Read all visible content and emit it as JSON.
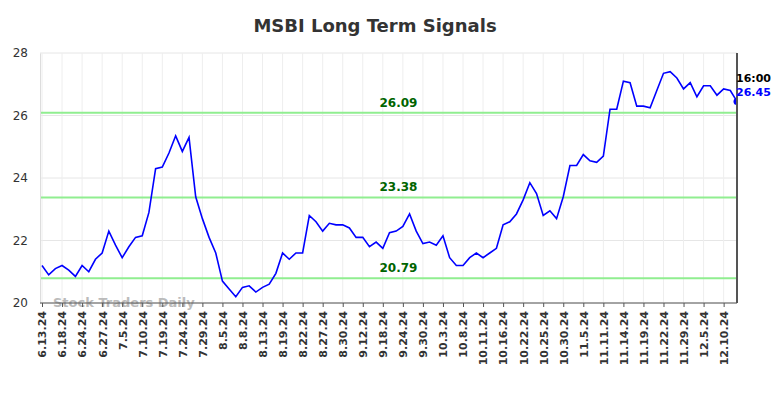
{
  "chart_data": {
    "type": "line",
    "title": "MSBI Long Term Signals",
    "categories": [
      "6.13.24",
      null,
      null,
      "6.18.24",
      null,
      null,
      "6.24.24",
      null,
      null,
      "6.27.24",
      null,
      null,
      "7.5.24",
      null,
      null,
      "7.10.24",
      null,
      null,
      "7.19.24",
      null,
      null,
      "7.24.24",
      null,
      null,
      "7.29.24",
      null,
      null,
      "8.5.24",
      null,
      null,
      "8.8.24",
      null,
      null,
      "8.13.24",
      null,
      null,
      "8.19.24",
      null,
      null,
      "8.22.24",
      null,
      null,
      "8.27.24",
      null,
      null,
      "8.30.24",
      null,
      null,
      "9.12.24",
      null,
      null,
      "9.18.24",
      null,
      null,
      "9.24.24",
      null,
      null,
      "9.30.24",
      null,
      null,
      "10.3.24",
      null,
      null,
      "10.8.24",
      null,
      null,
      "10.11.24",
      null,
      null,
      "10.16.24",
      null,
      null,
      "10.22.24",
      null,
      null,
      "10.25.24",
      null,
      null,
      "10.30.24",
      null,
      null,
      "11.5.24",
      null,
      null,
      "11.11.24",
      null,
      null,
      "11.14.24",
      null,
      null,
      "11.19.24",
      null,
      null,
      "11.22.24",
      null,
      null,
      "11.29.24",
      null,
      null,
      "12.5.24",
      null,
      null,
      "12.10.24",
      null,
      null
    ],
    "values": [
      21.2,
      20.9,
      21.1,
      21.2,
      21.05,
      20.85,
      21.2,
      21.0,
      21.4,
      21.6,
      22.3,
      21.85,
      21.45,
      21.8,
      22.1,
      22.15,
      22.9,
      24.3,
      24.35,
      24.8,
      25.35,
      24.85,
      25.3,
      23.4,
      22.7,
      22.1,
      21.6,
      20.7,
      20.45,
      20.2,
      20.5,
      20.55,
      20.35,
      20.5,
      20.6,
      20.95,
      21.6,
      21.4,
      21.6,
      21.6,
      22.8,
      22.6,
      22.3,
      22.55,
      22.5,
      22.5,
      22.4,
      22.1,
      22.1,
      21.8,
      21.95,
      21.75,
      22.25,
      22.3,
      22.45,
      22.85,
      22.3,
      21.9,
      21.95,
      21.85,
      22.15,
      21.45,
      21.2,
      21.2,
      21.45,
      21.6,
      21.45,
      21.6,
      21.75,
      22.5,
      22.6,
      22.85,
      23.3,
      23.85,
      23.5,
      22.8,
      22.95,
      22.7,
      23.4,
      24.4,
      24.4,
      24.75,
      24.55,
      24.5,
      24.7,
      26.2,
      26.2,
      27.1,
      27.05,
      26.3,
      26.3,
      26.25,
      26.8,
      27.35,
      27.4,
      27.2,
      26.85,
      27.05,
      26.6,
      26.95,
      26.95,
      26.65,
      26.85,
      26.8,
      26.45
    ],
    "color": "#0000ff",
    "ylim": [
      20,
      28
    ],
    "yticks": [
      20,
      22,
      24,
      26,
      28
    ],
    "grid": true,
    "levels": {
      "values": [
        26.09,
        23.38,
        20.79
      ],
      "color": "#90ee90"
    },
    "last_time": "16:00",
    "watermark": "Stock Traders Daily"
  }
}
